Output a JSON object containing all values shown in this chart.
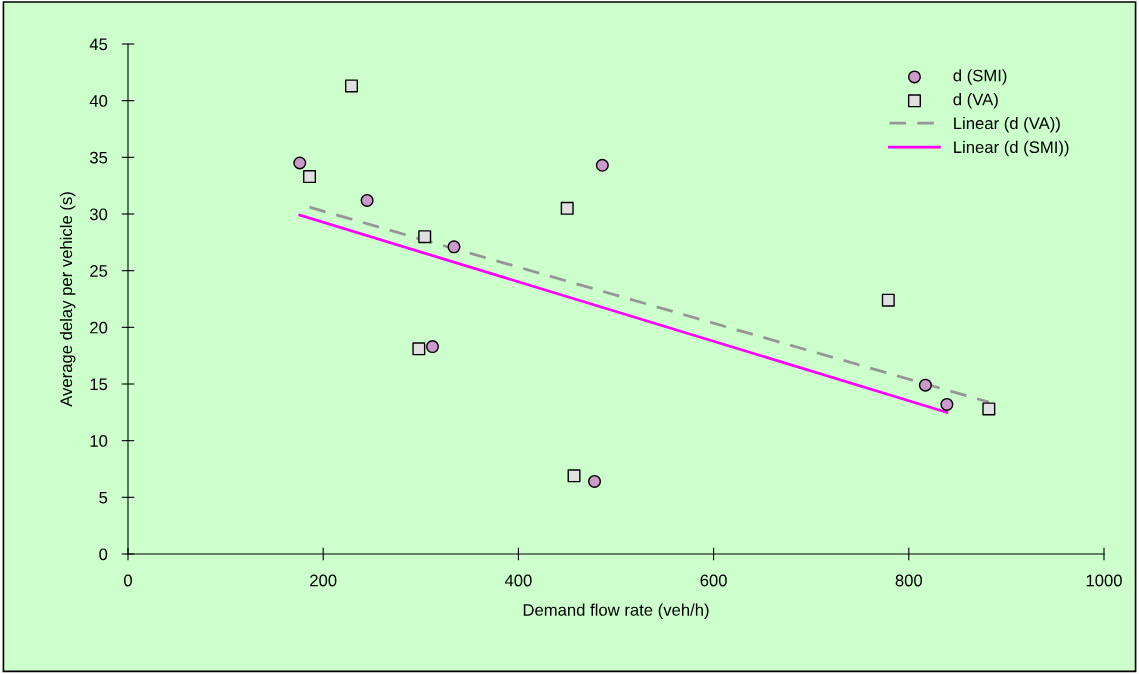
{
  "chart_data": {
    "type": "scatter",
    "xlabel": "Demand flow rate (veh/h)",
    "ylabel": "Average delay per vehicle (s)",
    "xlim": [
      0,
      1000
    ],
    "xticks": [
      0,
      200,
      400,
      600,
      800,
      1000
    ],
    "ylim": [
      0,
      45
    ],
    "yticks": [
      0,
      5,
      10,
      15,
      20,
      25,
      30,
      35,
      40,
      45
    ],
    "grid": false,
    "legend": "top right",
    "series": [
      {
        "name": "d (SMI)",
        "marker": "circle",
        "color": "#cc99cc",
        "x": [
          176,
          245,
          334,
          312,
          486,
          478,
          817,
          839
        ],
        "values": [
          34.5,
          31.2,
          27.1,
          18.3,
          34.3,
          6.4,
          14.9,
          13.2
        ]
      },
      {
        "name": "d (VA)",
        "marker": "square",
        "color": "#e0e0e0",
        "x": [
          229,
          186,
          304,
          298,
          450,
          457,
          779,
          882
        ],
        "values": [
          41.3,
          33.3,
          28.0,
          18.1,
          30.5,
          6.9,
          22.4,
          12.8
        ]
      },
      {
        "name": "Linear (d (VA))",
        "type": "line",
        "line_style": "dashed",
        "marker": "none",
        "color": "#969696",
        "x": [
          186,
          882
        ],
        "values": [
          30.6,
          13.4
        ]
      },
      {
        "name": "Linear (d (SMI))",
        "type": "line",
        "line_style": "solid",
        "marker": "none",
        "color": "#ff00ff",
        "x": [
          176,
          839
        ],
        "values": [
          29.9,
          12.5
        ]
      }
    ]
  }
}
